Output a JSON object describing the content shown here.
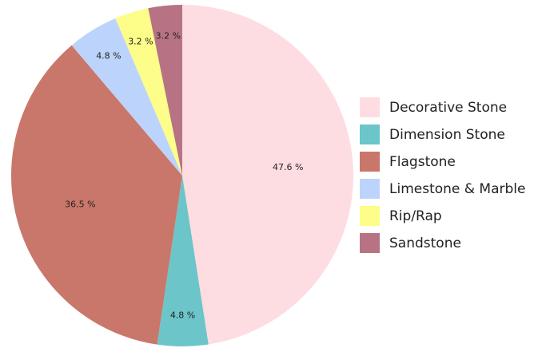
{
  "chart_data": {
    "type": "pie",
    "categories": [
      "Decorative Stone",
      "Dimension Stone",
      "Flagstone",
      "Limestone & Marble",
      "Rip/Rap",
      "Sandstone"
    ],
    "values": [
      47.6,
      4.8,
      36.5,
      4.8,
      3.2,
      3.2
    ],
    "value_labels": [
      "47.6 %",
      "4.8 %",
      "36.5 %",
      "4.8 %",
      "3.2 %",
      "3.2 %"
    ],
    "colors": [
      "#fddde1",
      "#6cc5c9",
      "#c9776a",
      "#bcd4fc",
      "#fdfd8a",
      "#b77384"
    ],
    "legend": "right"
  }
}
